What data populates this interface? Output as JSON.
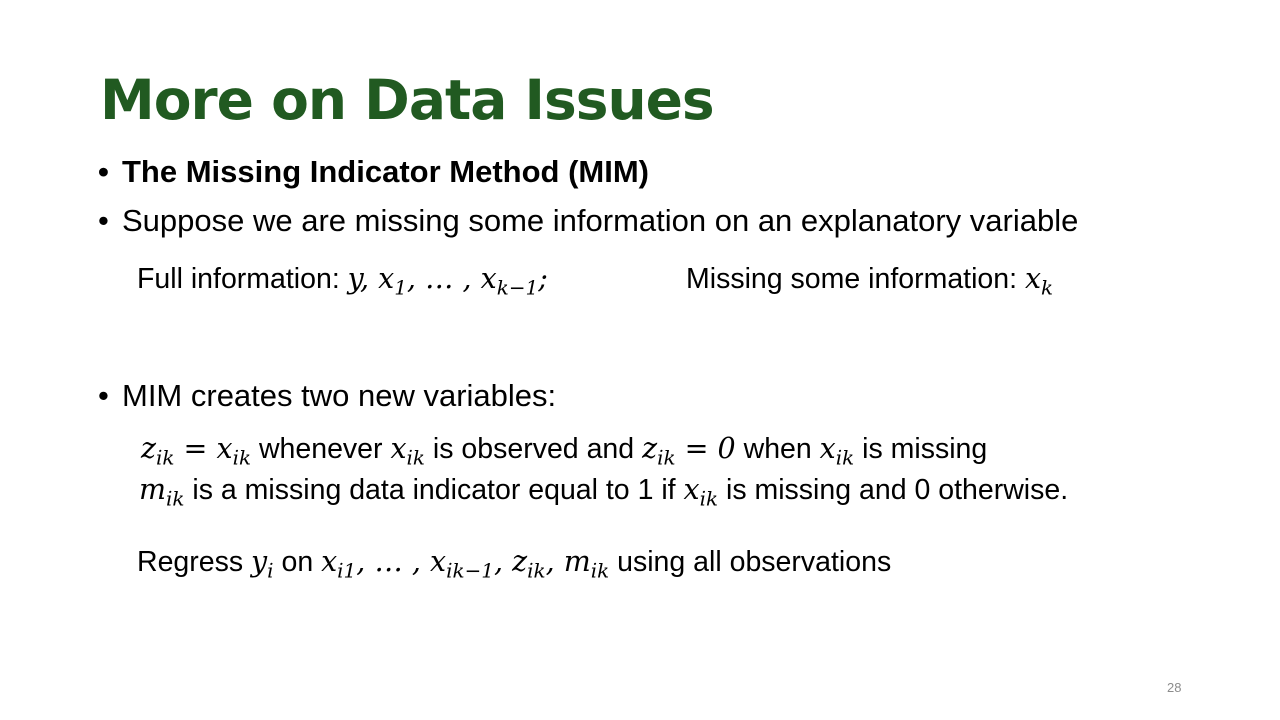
{
  "slide": {
    "title": "More on Data Issues",
    "bullet_dot": "•",
    "bullets": [
      "The Missing Indicator Method (MIM)",
      "Suppose we are missing some information on an explanatory variable",
      "MIM creates two new variables:"
    ],
    "full_info": {
      "label": "Full information:",
      "math": [
        "y, x",
        "1",
        ", … , x",
        "k−1",
        ";"
      ]
    },
    "missing_info": {
      "label": "Missing some information:",
      "math": [
        "x",
        "k"
      ]
    },
    "z_def": {
      "parts": [
        "z",
        "ik",
        " = x",
        "ik",
        " whenever ",
        "x",
        "ik",
        " is observed and ",
        "z",
        "ik",
        " = 0",
        " when ",
        "x",
        "ik",
        " is missing"
      ]
    },
    "m_def": {
      "parts": [
        "m",
        "ik",
        " is a missing data indicator equal to 1 if ",
        "x",
        "ik",
        " is missing and 0 otherwise."
      ]
    },
    "regress": {
      "parts": [
        "Regress ",
        "y",
        "i",
        " on ",
        "x",
        "i1",
        ", … , x",
        "ik−1",
        ", z",
        "ik",
        ", m",
        "ik",
        " using all observations"
      ]
    },
    "page_number": "28"
  }
}
